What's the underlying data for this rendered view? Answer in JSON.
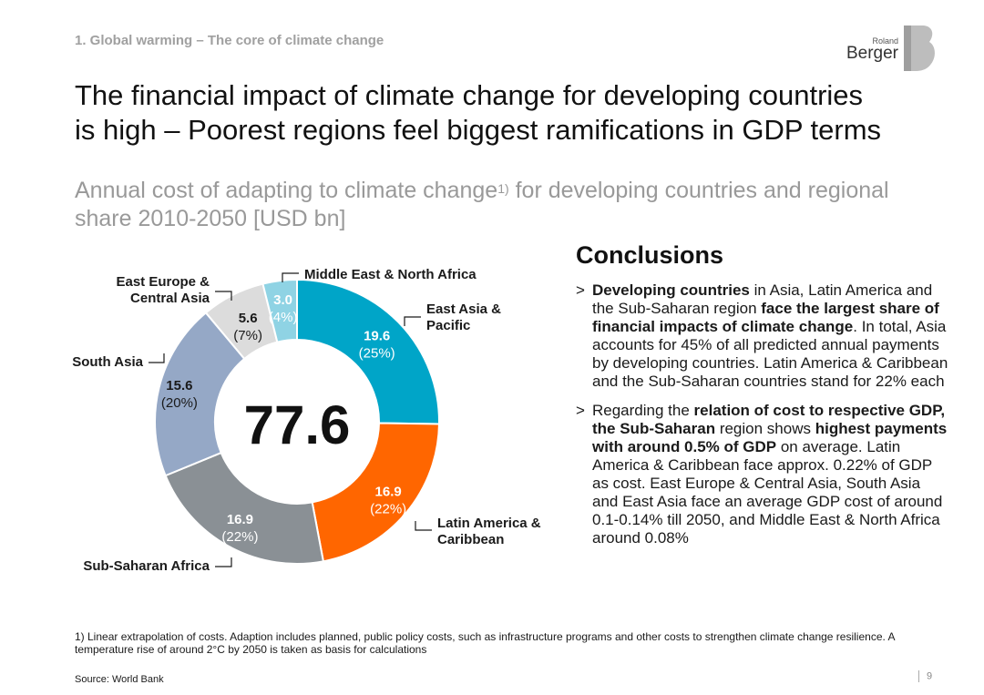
{
  "header": {
    "breadcrumb": "1. Global warming – The core of climate change",
    "logo_top": "Roland",
    "logo_bottom": "Berger",
    "title_line1": "The financial impact of climate change for developing countries",
    "title_line2": "is high – Poorest regions feel biggest ramifications in GDP terms",
    "subtitle_main": "Annual cost of adapting to climate change",
    "subtitle_sup": "1)",
    "subtitle_rest": " for developing countries and regional share 2010-2050 [USD bn]"
  },
  "chart_data": {
    "type": "pie",
    "variant": "donut",
    "title": "Annual cost of adapting to climate change for developing countries and regional share 2010-2050 [USD bn]",
    "total": "77.6",
    "unit": "USD bn",
    "slices": [
      {
        "label": "East Asia & Pacific",
        "label_lines": [
          "East Asia &",
          "Pacific"
        ],
        "value": 19.6,
        "value_text": "19.6",
        "share_text": "(25%)",
        "color": "#00a5c8",
        "text_color": "#ffffff"
      },
      {
        "label": "Latin America & Caribbean",
        "label_lines": [
          "Latin America &",
          "Caribbean"
        ],
        "value": 16.9,
        "value_text": "16.9",
        "share_text": "(22%)",
        "color": "#ff6600",
        "text_color": "#ffffff"
      },
      {
        "label": "Sub-Saharan Africa",
        "label_lines": [
          "Sub-Saharan Africa"
        ],
        "value": 16.9,
        "value_text": "16.9",
        "share_text": "(22%)",
        "color": "#8a9095",
        "text_color": "#ffffff"
      },
      {
        "label": "South Asia",
        "label_lines": [
          "South Asia"
        ],
        "value": 15.6,
        "value_text": "15.6",
        "share_text": "(20%)",
        "color": "#95a8c6",
        "text_color": "#1a1a1a"
      },
      {
        "label": "East Europe & Central Asia",
        "label_lines": [
          "East Europe &",
          "Central Asia"
        ],
        "value": 5.6,
        "value_text": "5.6",
        "share_text": "(7%)",
        "color": "#dcdcdc",
        "text_color": "#1a1a1a"
      },
      {
        "label": "Middle East & North Africa",
        "label_lines": [
          "Middle East & North Africa"
        ],
        "value": 3.0,
        "value_text": "3.0",
        "share_text": "(4%)",
        "color": "#8fd3e4",
        "text_color": "#ffffff"
      }
    ]
  },
  "conclusions": {
    "heading": "Conclusions",
    "bullet_marker": ">",
    "bullet1": [
      {
        "t": "Developing countries",
        "b": true
      },
      {
        "t": " in Asia, Latin America and the Sub-Saharan region ",
        "b": false
      },
      {
        "t": "face the largest share of financial impacts of climate change",
        "b": true
      },
      {
        "t": ". In total, Asia accounts for 45% of all predicted annual payments by developing countries. Latin America & Caribbean and the Sub-Saharan countries stand for 22% each",
        "b": false
      }
    ],
    "bullet2": [
      {
        "t": "Regarding the ",
        "b": false
      },
      {
        "t": "relation of cost to respective GDP, the Sub-Saharan",
        "b": true
      },
      {
        "t": " region shows ",
        "b": false
      },
      {
        "t": "highest payments with around 0.5% of GDP",
        "b": true
      },
      {
        "t": " on average. Latin America & Caribbean face approx. 0.22% of GDP as cost. East Europe & Central Asia, South Asia  and East Asia face an average GDP cost of around 0.1-0.14% till 2050, and Middle East & North Africa around 0.08%",
        "b": false
      }
    ]
  },
  "footer": {
    "footnote": "1) Linear extrapolation of costs. Adaption includes planned, public policy costs, such as infrastructure programs and other costs to strengthen climate change resilience. A temperature rise of around 2°C by 2050 is taken as basis for calculations",
    "source": "Source: World Bank",
    "page_number": "9"
  },
  "colors": {
    "grey_text": "#999999",
    "logo_mark": "#b9b9b9"
  }
}
